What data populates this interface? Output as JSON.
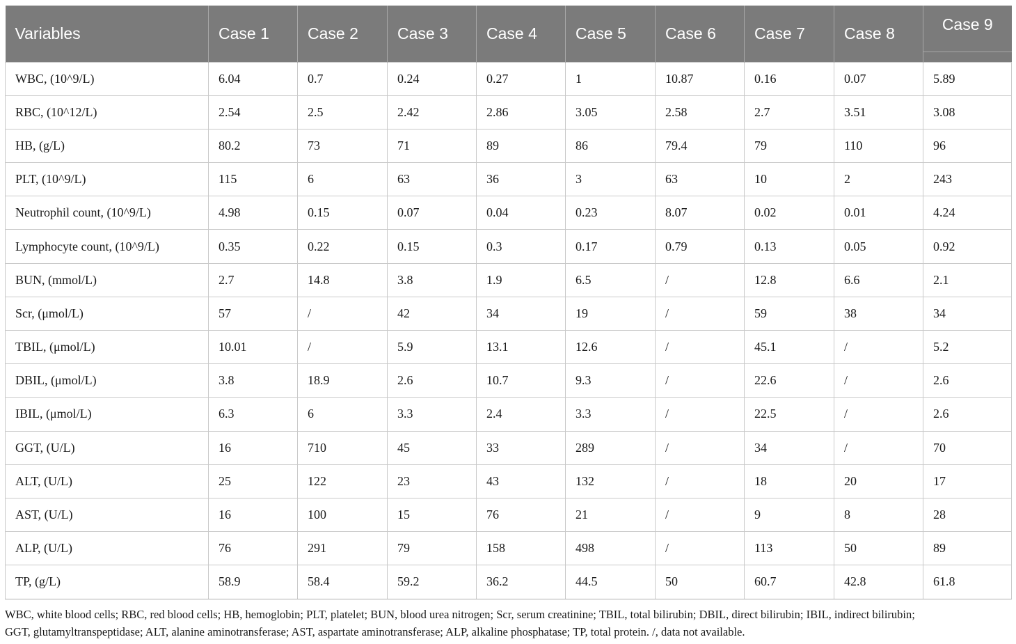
{
  "table": {
    "header_bg": "#7b7b7b",
    "columns": [
      "Variables",
      "Case 1",
      "Case 2",
      "Case 3",
      "Case 4",
      "Case 5",
      "Case 6",
      "Case 7",
      "Case 8",
      "Case 9"
    ],
    "rows": [
      [
        "WBC, (10^9/L)",
        "6.04",
        "0.7",
        "0.24",
        "0.27",
        "1",
        "10.87",
        "0.16",
        "0.07",
        "5.89"
      ],
      [
        "RBC, (10^12/L)",
        "2.54",
        "2.5",
        "2.42",
        "2.86",
        "3.05",
        "2.58",
        "2.7",
        "3.51",
        "3.08"
      ],
      [
        "HB, (g/L)",
        "80.2",
        "73",
        "71",
        "89",
        "86",
        "79.4",
        "79",
        "110",
        "96"
      ],
      [
        "PLT, (10^9/L)",
        "115",
        "6",
        "63",
        "36",
        "3",
        "63",
        "10",
        "2",
        "243"
      ],
      [
        "Neutrophil count, (10^9/L)",
        "4.98",
        "0.15",
        "0.07",
        "0.04",
        "0.23",
        "8.07",
        "0.02",
        "0.01",
        "4.24"
      ],
      [
        "Lymphocyte count, (10^9/L)",
        "0.35",
        "0.22",
        "0.15",
        "0.3",
        "0.17",
        "0.79",
        "0.13",
        "0.05",
        "0.92"
      ],
      [
        "BUN, (mmol/L)",
        "2.7",
        "14.8",
        "3.8",
        "1.9",
        "6.5",
        "/",
        "12.8",
        "6.6",
        "2.1"
      ],
      [
        "Scr, (μmol/L)",
        "57",
        "/",
        "42",
        "34",
        "19",
        "/",
        "59",
        "38",
        "34"
      ],
      [
        "TBIL, (μmol/L)",
        "10.01",
        "/",
        "5.9",
        "13.1",
        "12.6",
        "/",
        "45.1",
        "/",
        "5.2"
      ],
      [
        "DBIL, (μmol/L)",
        "3.8",
        "18.9",
        "2.6",
        "10.7",
        "9.3",
        "/",
        "22.6",
        "/",
        "2.6"
      ],
      [
        "IBIL, (μmol/L)",
        "6.3",
        "6",
        "3.3",
        "2.4",
        "3.3",
        "/",
        "22.5",
        "/",
        "2.6"
      ],
      [
        "GGT, (U/L)",
        "16",
        "710",
        "45",
        "33",
        "289",
        "/",
        "34",
        "/",
        "70"
      ],
      [
        "ALT, (U/L)",
        "25",
        "122",
        "23",
        "43",
        "132",
        "/",
        "18",
        "20",
        "17"
      ],
      [
        "AST, (U/L)",
        "16",
        "100",
        "15",
        "76",
        "21",
        "/",
        "9",
        "8",
        "28"
      ],
      [
        "ALP, (U/L)",
        "76",
        "291",
        "79",
        "158",
        "498",
        "/",
        "113",
        "50",
        "89"
      ],
      [
        "TP, (g/L)",
        "58.9",
        "58.4",
        "59.2",
        "36.2",
        "44.5",
        "50",
        "60.7",
        "42.8",
        "61.8"
      ]
    ]
  },
  "footnote": {
    "line1": "WBC, white blood cells; RBC, red blood cells; HB, hemoglobin; PLT, platelet; BUN, blood urea nitrogen; Scr, serum creatinine; TBIL, total bilirubin; DBIL, direct bilirubin; IBIL, indirect bilirubin;",
    "line2": "GGT, glutamyltranspeptidase; ALT, alanine aminotransferase; AST, aspartate aminotransferase; ALP, alkaline phosphatase; TP, total protein.  /, data not available."
  }
}
